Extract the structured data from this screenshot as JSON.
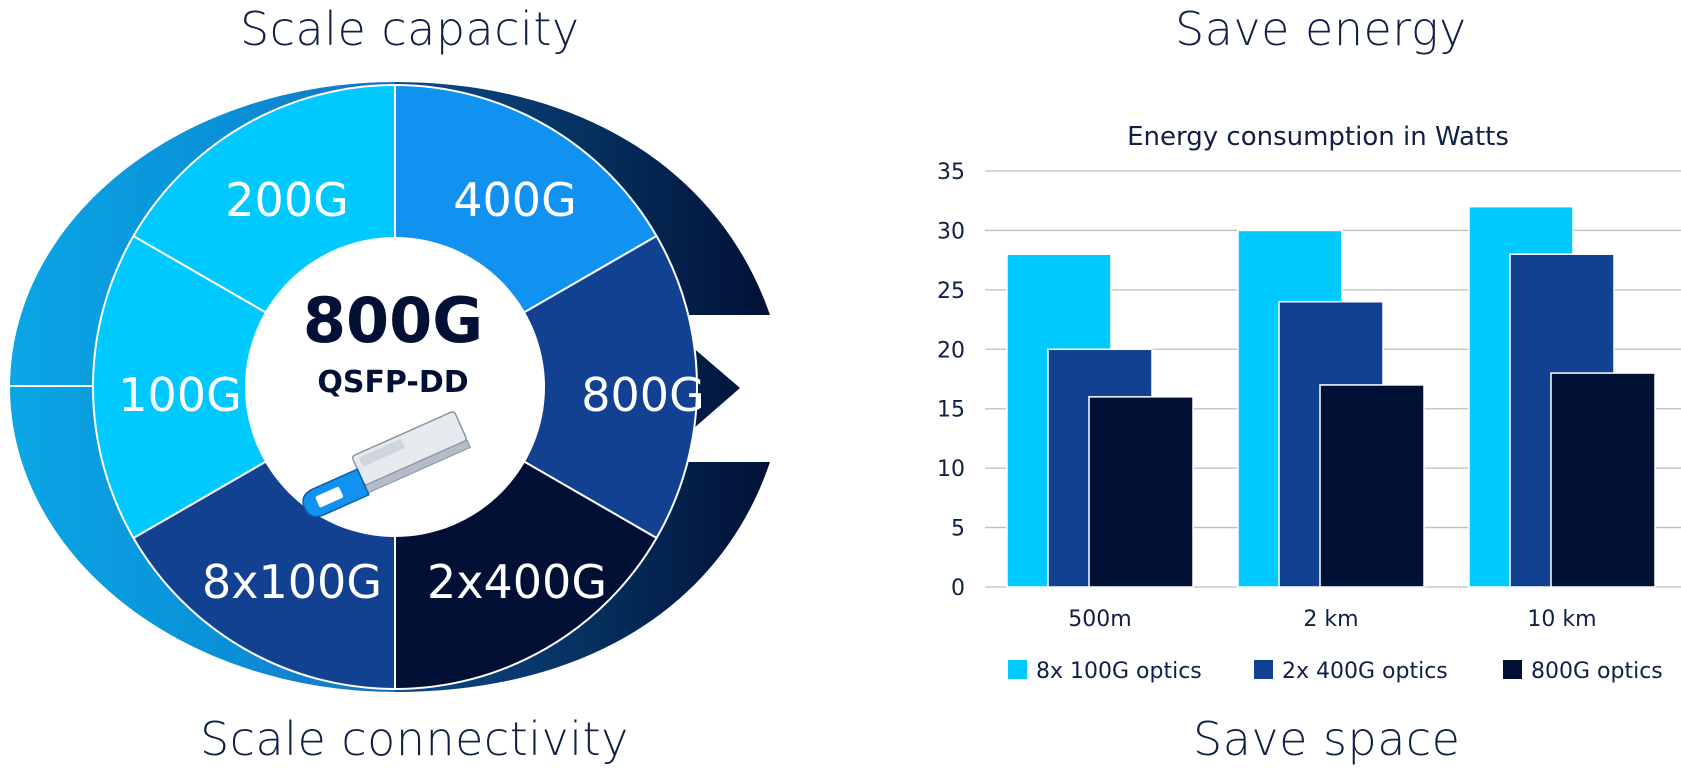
{
  "headings": {
    "top_left": "Scale capacity",
    "top_right": "Save energy",
    "bottom_left": "Scale connectivity",
    "bottom_right": "Save space"
  },
  "diagram": {
    "center_title": "800G",
    "center_subtitle": "QSFP-DD",
    "segments": [
      {
        "label": "200G",
        "color": "#1192f0"
      },
      {
        "label": "400G",
        "color": "#124191"
      },
      {
        "label": "800G",
        "color": "#021036"
      },
      {
        "label": "2x400G",
        "color": "#124191"
      },
      {
        "label": "8x100G",
        "color": "#00c9ff"
      },
      {
        "label": "100G",
        "color": "#00c9ff"
      }
    ],
    "icon": "qsfp-dd-module-icon"
  },
  "chart_data": {
    "type": "bar",
    "title": "Energy consumption in Watts",
    "categories": [
      "500m",
      "2 km",
      "10 km"
    ],
    "series": [
      {
        "name": "8x 100G optics",
        "values": [
          28,
          30,
          32
        ],
        "color": "#00c9ff"
      },
      {
        "name": "2x 400G optics",
        "values": [
          20,
          24,
          28
        ],
        "color": "#124191"
      },
      {
        "name": "800G optics",
        "values": [
          16,
          17,
          18
        ],
        "color": "#021036"
      }
    ],
    "ylim": [
      0,
      35
    ],
    "yticks": [
      "0",
      "5",
      "10",
      "15",
      "20",
      "25",
      "30",
      "35"
    ],
    "xlabel": "",
    "ylabel": "",
    "grid": true,
    "legend": "bottom"
  }
}
